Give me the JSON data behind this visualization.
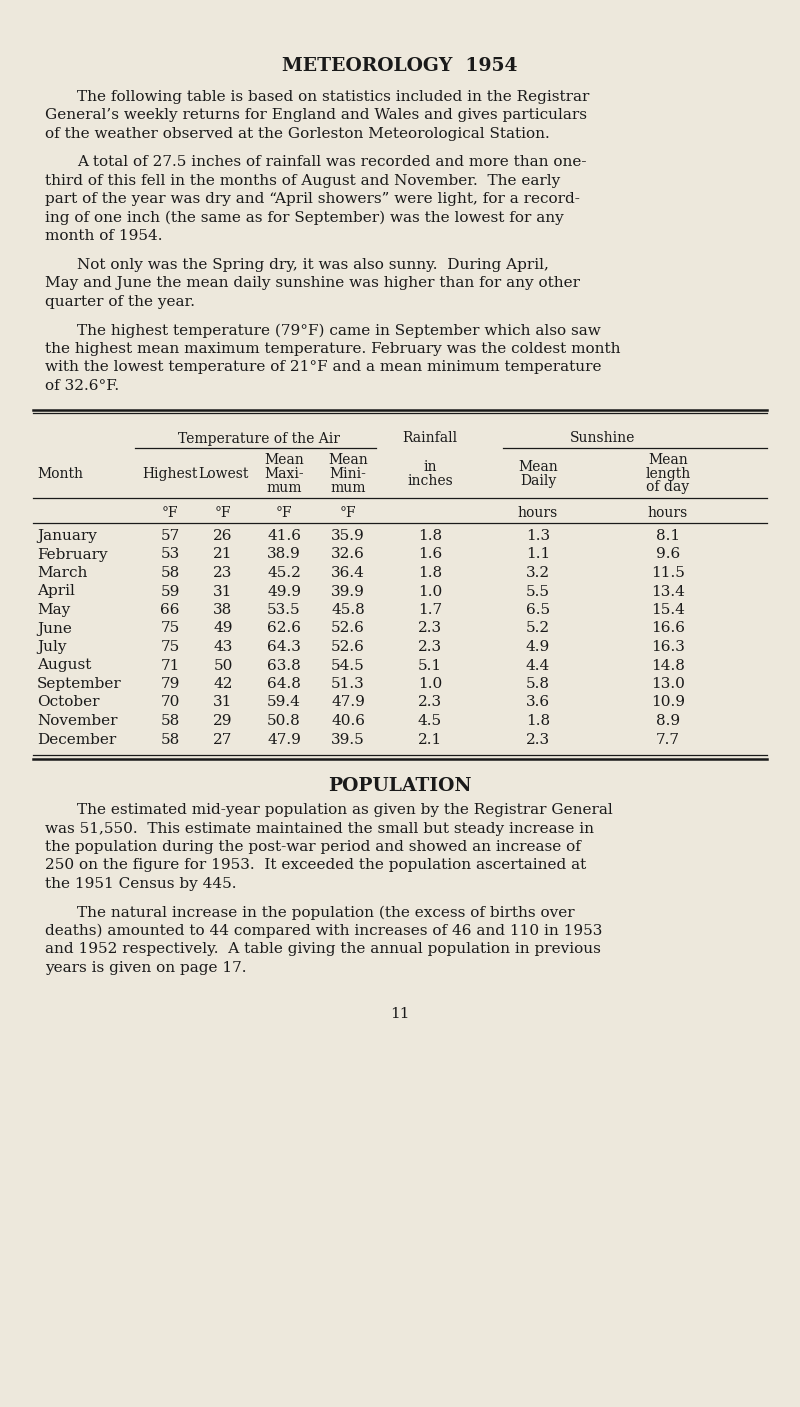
{
  "bg_color": "#ede8dc",
  "text_color": "#1a1a1a",
  "title_meteo": "METEOROLOGY  1954",
  "para1": "The following table is based on statistics included in the Registrar General’s weekly returns for England and Wales and gives particulars of the weather observed at the Gorleston Meteorological Station.",
  "para2": "A total of 27.5 inches of rainfall was recorded and more than one-third of this fell in the months of August and November.  The early part of the year was dry and “April showers” were light, for a recording of one inch (the same as for September) was the lowest for any month of 1954.",
  "para3": "Not only was the Spring dry, it was also sunny.  During April, May and June the mean daily sunshine was higher than for any other quarter of the year.",
  "para4": "The highest temperature (79°F) came in September which also saw the highest mean maximum temperature. February was the coldest month with the lowest temperature of 21°F and a mean minimum temperature of 32.6°F.",
  "months": [
    "January",
    "February",
    "March",
    "April",
    "May",
    "June",
    "July",
    "August",
    "September",
    "October",
    "November",
    "December"
  ],
  "highest": [
    57,
    53,
    58,
    59,
    66,
    75,
    75,
    71,
    79,
    70,
    58,
    58
  ],
  "lowest": [
    26,
    21,
    23,
    31,
    38,
    49,
    43,
    50,
    42,
    31,
    29,
    27
  ],
  "mean_max": [
    41.6,
    38.9,
    45.2,
    49.9,
    53.5,
    62.6,
    64.3,
    63.8,
    64.8,
    59.4,
    50.8,
    47.9
  ],
  "mean_min": [
    35.9,
    32.6,
    36.4,
    39.9,
    45.8,
    52.6,
    52.6,
    54.5,
    51.3,
    47.9,
    40.6,
    39.5
  ],
  "rainfall": [
    1.8,
    1.6,
    1.8,
    1.0,
    1.7,
    2.3,
    2.3,
    5.1,
    1.0,
    2.3,
    4.5,
    2.1
  ],
  "mean_daily": [
    1.3,
    1.1,
    3.2,
    5.5,
    6.5,
    5.2,
    4.9,
    4.4,
    5.8,
    3.6,
    1.8,
    2.3
  ],
  "mean_length": [
    8.1,
    9.6,
    11.5,
    13.4,
    15.4,
    16.6,
    16.3,
    14.8,
    13.0,
    10.9,
    8.9,
    7.7
  ],
  "title_pop": "POPULATION",
  "pop_para1": "The estimated mid-year population as given by the Registrar General was 51,550.  This estimate maintained the small but steady increase in the population during the post-war period and showed an increase of 250 on the figure for 1953.  It exceeded the population ascertained at the 1951 Census by 445.",
  "pop_para2": "The natural increase in the population (the excess of births over deaths) amounted to 44 compared with increases of 46 and 110 in 1953 and 1952 respectively.  A table giving the annual population in previous years is given on page 17.",
  "page_num": "11",
  "para1_lines": [
    "The following table is based on statistics included in the Registrar",
    "General’s weekly returns for England and Wales and gives particulars",
    "of the weather observed at the Gorleston Meteorological Station."
  ],
  "para2_lines": [
    "A total of 27.5 inches of rainfall was recorded and more than one-",
    "third of this fell in the months of August and November.  The early",
    "part of the year was dry and “April showers” were light, for a record-",
    "ing of one inch (the same as for September) was the lowest for any",
    "month of 1954."
  ],
  "para3_lines": [
    "Not only was the Spring dry, it was also sunny.  During April,",
    "May and June the mean daily sunshine was higher than for any other",
    "quarter of the year."
  ],
  "para4_lines": [
    "The highest temperature (79°F) came in September which also saw",
    "the highest mean maximum temperature. February was the coldest month",
    "with the lowest temperature of 21°F and a mean minimum temperature",
    "of 32.6°F."
  ],
  "pop_para1_lines": [
    "The estimated mid-year population as given by the Registrar General",
    "was 51,550.  This estimate maintained the small but steady increase in",
    "the population during the post-war period and showed an increase of",
    "250 on the figure for 1953.  It exceeded the population ascertained at",
    "the 1951 Census by 445."
  ],
  "pop_para2_lines": [
    "The natural increase in the population (the excess of births over",
    "deaths) amounted to 44 compared with increases of 46 and 110 in 1953",
    "and 1952 respectively.  A table giving the annual population in previous",
    "years is given on page 17."
  ]
}
